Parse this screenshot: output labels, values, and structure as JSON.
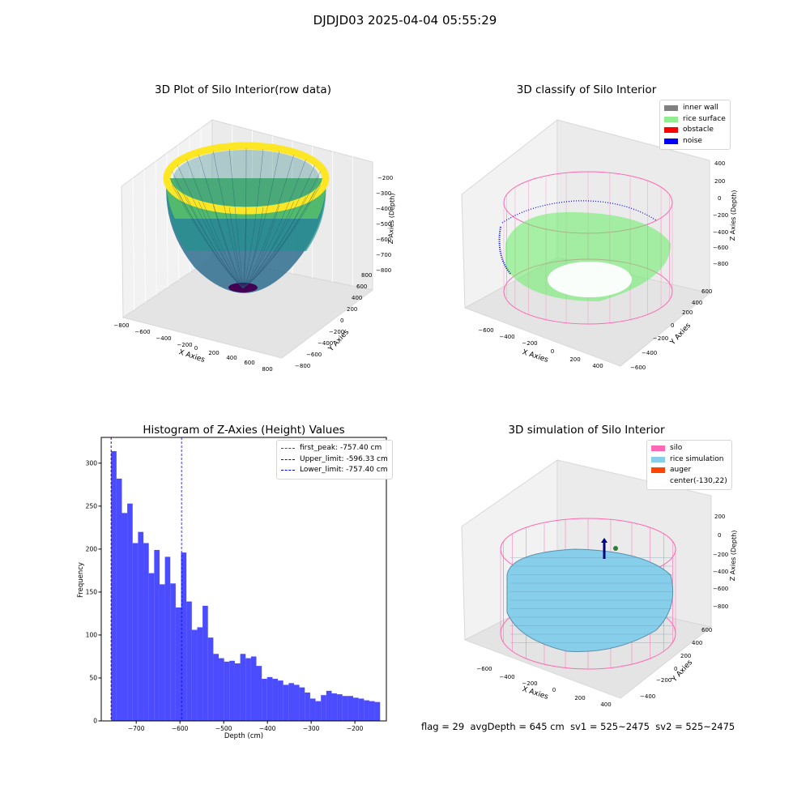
{
  "figure": {
    "suptitle": "DJDJD03 2025-04-04 05:55:29",
    "footer": {
      "flag": "flag = 29",
      "avg_depth": "avgDepth = 645 cm",
      "sv1": "sv1 = 525~2475",
      "sv2": "sv2 = 525~2475"
    }
  },
  "panel_raw": {
    "title": "3D Plot of Silo Interior(row data)",
    "xlabel": "X Axies",
    "ylabel": "Y Axies",
    "zlabel": "Z Axies (Depth)",
    "xticks": [
      "−800",
      "−600",
      "−400",
      "−200",
      "0",
      "200",
      "400",
      "600",
      "800"
    ],
    "yticks": [
      "−800",
      "−600",
      "−400",
      "−200",
      "0",
      "200",
      "400",
      "600",
      "800"
    ],
    "zticks": [
      "−200",
      "−300",
      "−400",
      "−500",
      "−600",
      "−700",
      "−800"
    ],
    "colormap": "viridis"
  },
  "panel_classify": {
    "title": "3D classify of Silo Interior",
    "xlabel": "X Axies",
    "ylabel": "Y Axies",
    "zlabel": "Z Axies (Depth)",
    "xticks": [
      "−600",
      "−400",
      "−200",
      "0",
      "200",
      "400"
    ],
    "yticks": [
      "−600",
      "−400",
      "−200",
      "0",
      "200",
      "400",
      "600"
    ],
    "zticks": [
      "400",
      "200",
      "0",
      "−200",
      "−400",
      "−600",
      "−800"
    ],
    "legend": [
      {
        "label": "inner wall",
        "color": "#808080"
      },
      {
        "label": "rice surface",
        "color": "#90ee90"
      },
      {
        "label": "obstacle",
        "color": "#ff0000"
      },
      {
        "label": "noise",
        "color": "#0000ff"
      }
    ],
    "wall_color": "#ff69b4",
    "surface_color": "#00ee00",
    "noise_color": "#0000ff"
  },
  "panel_sim": {
    "title": "3D simulation of Silo Interior",
    "xlabel": "X Axies",
    "ylabel": "Y Axies",
    "zlabel": "Z Axies (Depth)",
    "xticks": [
      "−600",
      "−400",
      "−200",
      "0",
      "200",
      "400"
    ],
    "yticks": [
      "−400",
      "−200",
      "0",
      "200",
      "400",
      "600"
    ],
    "zticks": [
      "200",
      "0",
      "−200",
      "−400",
      "−600",
      "−800"
    ],
    "legend": [
      {
        "label": "silo",
        "color": "#ff69b4"
      },
      {
        "label": "rice simulation",
        "color": "#87ceeb"
      },
      {
        "label": "auger",
        "color": "#ff4500"
      },
      {
        "label": "center(-130,22)",
        "color": ""
      }
    ]
  },
  "chart_data": {
    "type": "bar",
    "title": "Histogram of Z-Axies (Height) Values",
    "xlabel": "Depth (cm)",
    "ylabel": "Frequency",
    "xlim": [
      -780,
      -128
    ],
    "ylim": [
      0,
      330
    ],
    "xticks": [
      -700,
      -600,
      -500,
      -400,
      -300,
      -200
    ],
    "xtick_labels": [
      "−700",
      "−600",
      "−500",
      "−400",
      "−300",
      "−200"
    ],
    "yticks": [
      0,
      50,
      100,
      150,
      200,
      250,
      300
    ],
    "yticks_labels": [
      "0",
      "50",
      "100",
      "150",
      "200",
      "250",
      "300"
    ],
    "bar_color": "#0000ff",
    "bin_start": -757.4,
    "bin_width": 12.3,
    "values": [
      314,
      282,
      242,
      253,
      207,
      220,
      207,
      172,
      199,
      159,
      191,
      160,
      132,
      196,
      139,
      106,
      109,
      134,
      97,
      78,
      73,
      69,
      70,
      67,
      78,
      73,
      75,
      64,
      49,
      51,
      49,
      47,
      42,
      44,
      42,
      39,
      33,
      26,
      23,
      30,
      35,
      32,
      31,
      29,
      29,
      27,
      26,
      24,
      23,
      22
    ],
    "lines": [
      {
        "label": "first_peak: -757.40 cm",
        "x": -757.4,
        "color": "#ff0000"
      },
      {
        "label": "Upper_limit: -596.33 cm",
        "x": -596.33,
        "color": "#0000ff"
      },
      {
        "label": "Lower_limit: -757.40 cm",
        "x": -757.4,
        "color": "#0000ff"
      }
    ],
    "legend_position": "upper right"
  }
}
